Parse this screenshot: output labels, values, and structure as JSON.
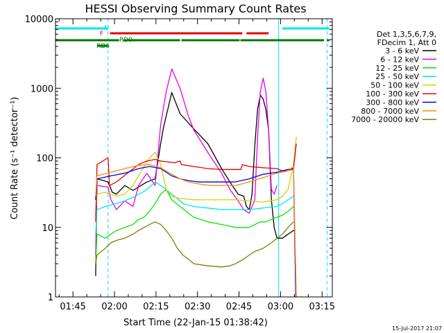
{
  "chart_data": {
    "type": "line",
    "title": "HESSI Observing Summary Count Rates",
    "xlabel": "Start Time (22-Jan-15 01:38:42)",
    "ylabel": "Count Rate (s⁻¹ detector⁻¹)",
    "y_scale": "log",
    "ylim": [
      1,
      10000
    ],
    "xlim_minutes": [
      0,
      100
    ],
    "x_ticks": [
      {
        "label": "01:45",
        "t": 6.3
      },
      {
        "label": "02:00",
        "t": 21.3
      },
      {
        "label": "02:15",
        "t": 36.3
      },
      {
        "label": "02:30",
        "t": 51.3
      },
      {
        "label": "02:45",
        "t": 66.3
      },
      {
        "label": "03:00",
        "t": 81.3
      },
      {
        "label": "03:15",
        "t": 96.3
      }
    ],
    "y_ticks": [
      {
        "label": "1",
        "v": 1
      },
      {
        "label": "10",
        "v": 10
      },
      {
        "label": "100",
        "v": 100
      },
      {
        "label": "1000",
        "v": 1000
      },
      {
        "label": "10000",
        "v": 10000
      }
    ],
    "legend": {
      "placement": "right",
      "header": [
        "Det 1,3,5,6,7,9,",
        "FDecim 1, Att 0"
      ],
      "entries": [
        {
          "label": "3 - 6 keV",
          "color": "#000000"
        },
        {
          "label": "6 - 12 keV",
          "color": "#e600e6"
        },
        {
          "label": "12 - 25 keV",
          "color": "#00e600"
        },
        {
          "label": "25 - 50 keV",
          "color": "#00e6e6"
        },
        {
          "label": "50 - 100 keV",
          "color": "#d2d200"
        },
        {
          "label": "100 - 300 keV",
          "color": "#e60000"
        },
        {
          "label": "300 - 800 keV",
          "color": "#0000e6"
        },
        {
          "label": "800 - 7000 keV",
          "color": "#ff8c00"
        },
        {
          "label": "7000 - 20000 keV",
          "color": "#7d7d00"
        }
      ]
    },
    "flags": [
      {
        "label": "N",
        "color": "#00e6e6",
        "segments": [
          [
            0,
            19
          ],
          [
            82,
            99
          ]
        ]
      },
      {
        "label": "F",
        "color": "#e60000",
        "segments": [
          [
            19.7,
            67.5
          ],
          [
            69,
            77
          ]
        ]
      },
      {
        "label": "RD0",
        "color": "#007800",
        "segments": [
          [
            0,
            23
          ],
          [
            24.5,
            45
          ],
          [
            45.5,
            66.5
          ],
          [
            66.8,
            97
          ],
          [
            98,
            99
          ]
        ]
      },
      {
        "label": "RD6",
        "color": "#007800",
        "segments": [
          [
            15,
            19
          ]
        ]
      }
    ],
    "vlines": [
      {
        "t": 0,
        "color": "#00e6e6",
        "style": "solid"
      },
      {
        "t": 19,
        "color": "#00e6e6",
        "style": "dashed"
      },
      {
        "t": 80.6,
        "color": "#00e6e6",
        "style": "solid"
      },
      {
        "t": 98.1,
        "color": "#00e6e6",
        "style": "dashed"
      }
    ],
    "series": [
      {
        "name": "3 - 6 keV",
        "color": "#000000",
        "x": [
          14.5,
          15,
          19,
          20.5,
          22,
          25,
          28,
          30,
          33,
          36,
          38,
          39,
          40,
          42,
          45,
          50,
          55,
          60,
          63,
          66,
          68,
          69,
          70,
          71,
          72,
          73,
          74,
          75,
          76,
          77,
          78,
          79,
          80,
          82,
          84,
          86,
          86.5
        ],
        "y": [
          2,
          50,
          45,
          32,
          30,
          40,
          34,
          38,
          45,
          50,
          160,
          270,
          400,
          870,
          430,
          260,
          160,
          70,
          45,
          30,
          28,
          20,
          18,
          30,
          150,
          500,
          800,
          700,
          500,
          250,
          25,
          10,
          7,
          7,
          8,
          9,
          9
        ]
      },
      {
        "name": "6 - 12 keV",
        "color": "#e600e6",
        "x": [
          14.5,
          15,
          19,
          20,
          22,
          25,
          28,
          30,
          33,
          36,
          38,
          40,
          42,
          45,
          48,
          50,
          55,
          60,
          63,
          66,
          68,
          70,
          72,
          73,
          74,
          75,
          76,
          77,
          78,
          79,
          80
        ],
        "y": [
          4,
          40,
          38,
          25,
          18,
          24,
          20,
          40,
          60,
          40,
          300,
          900,
          1900,
          1000,
          400,
          250,
          120,
          60,
          35,
          24,
          18,
          16,
          25,
          200,
          900,
          1400,
          900,
          250,
          35,
          30,
          40
        ]
      },
      {
        "name": "12 - 25 keV",
        "color": "#00e600",
        "x": [
          14.5,
          15,
          18,
          20,
          22,
          25,
          28,
          30,
          32,
          34,
          36,
          38,
          40,
          42,
          45,
          48,
          50,
          55,
          60,
          65,
          70,
          72,
          74,
          76,
          78,
          80,
          82,
          84,
          86
        ],
        "y": [
          3,
          8,
          7,
          8,
          9,
          10,
          11,
          13,
          14,
          17,
          22,
          30,
          35,
          25,
          20,
          16,
          14,
          12,
          11,
          10,
          10,
          11,
          12,
          12,
          13,
          14,
          15,
          17,
          20
        ]
      },
      {
        "name": "25 - 50 keV",
        "color": "#00e6e6",
        "x": [
          14.5,
          15,
          18,
          20,
          22,
          25,
          28,
          30,
          32,
          34,
          36,
          38,
          40,
          42,
          44,
          46,
          50,
          55,
          60,
          65,
          70,
          75,
          80,
          82,
          84,
          86
        ],
        "y": [
          8,
          18,
          20,
          21,
          22,
          24,
          27,
          30,
          33,
          38,
          45,
          40,
          35,
          30,
          26,
          22,
          20,
          19,
          18,
          18,
          18,
          19,
          20,
          22,
          25,
          28
        ]
      },
      {
        "name": "50 - 100 keV",
        "color": "#d2d200",
        "x": [
          14.5,
          15,
          18,
          20,
          22,
          25,
          28,
          30,
          32,
          34,
          36,
          38,
          40,
          42,
          45,
          50,
          55,
          60,
          65,
          70,
          75,
          80,
          82,
          84,
          86,
          87
        ],
        "y": [
          15,
          30,
          32,
          30,
          28,
          30,
          40,
          55,
          75,
          100,
          120,
          80,
          35,
          28,
          26,
          25,
          25,
          25,
          25,
          24,
          23,
          25,
          28,
          35,
          80,
          200
        ]
      },
      {
        "name": "100 - 300 keV",
        "color": "#e60000",
        "x": [
          14.5,
          15,
          19,
          19.5,
          22,
          26,
          30,
          33,
          36,
          38,
          40,
          43,
          45,
          45.5,
          50,
          55,
          60,
          65,
          67,
          67.5,
          70,
          75,
          80,
          82,
          84,
          86,
          87
        ],
        "y": [
          12,
          80,
          100,
          40,
          45,
          60,
          80,
          90,
          95,
          90,
          88,
          85,
          90,
          80,
          75,
          70,
          68,
          68,
          68,
          80,
          75,
          72,
          70,
          65,
          65,
          70,
          160
        ]
      },
      {
        "name": "300 - 800 keV",
        "color": "#0000e6",
        "x": [
          14.5,
          15,
          20,
          25,
          30,
          34,
          38,
          42,
          45,
          48,
          52,
          56,
          60,
          65,
          70,
          75,
          80,
          84,
          86,
          86.8
        ],
        "y": [
          25,
          50,
          55,
          60,
          70,
          75,
          70,
          55,
          50,
          47,
          45,
          45,
          45,
          45,
          50,
          58,
          62,
          68,
          70,
          1
        ]
      },
      {
        "name": "800 - 7000 keV",
        "color": "#ff8c00",
        "x": [
          14.5,
          15,
          20,
          25,
          30,
          34,
          38,
          42,
          45,
          48,
          52,
          56,
          60,
          65,
          70,
          75,
          80,
          84,
          86,
          87
        ],
        "y": [
          28,
          55,
          62,
          70,
          78,
          80,
          72,
          58,
          50,
          45,
          42,
          40,
          40,
          40,
          45,
          52,
          60,
          65,
          75,
          1
        ]
      },
      {
        "name": "7000 - 20000 keV",
        "color": "#7d7d00",
        "x": [
          14.5,
          15,
          18,
          20,
          22,
          25,
          28,
          30,
          32,
          34,
          36,
          38,
          40,
          42,
          44,
          46,
          48,
          50,
          55,
          60,
          63,
          65,
          68,
          70,
          72,
          75,
          78,
          80,
          82,
          84,
          86
        ],
        "y": [
          3,
          4,
          5,
          6,
          6.5,
          7,
          8,
          9,
          10,
          11,
          12,
          11,
          9,
          7,
          5,
          4,
          3.5,
          3,
          2.8,
          2.7,
          2.8,
          3,
          3.5,
          4,
          4.5,
          5,
          6,
          7,
          8,
          10,
          12
        ]
      }
    ]
  },
  "footer": {
    "date": "15-Jul-2017 21:07"
  }
}
